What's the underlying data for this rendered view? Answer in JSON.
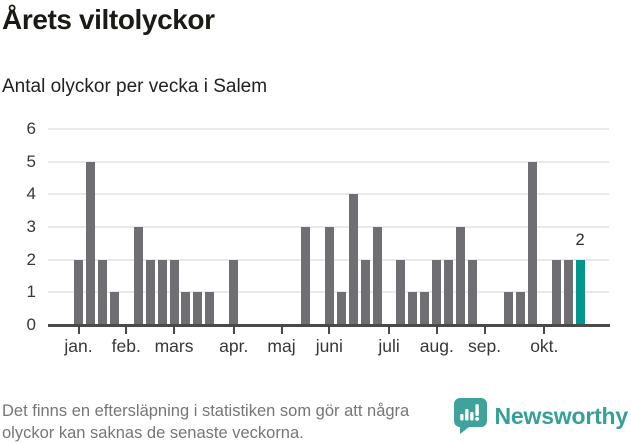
{
  "header": {
    "title": "Årets viltolyckor",
    "subtitle": "Antal olyckor per vecka i Salem"
  },
  "chart_data": {
    "type": "bar",
    "title": "Årets viltolyckor",
    "subtitle": "Antal olyckor per vecka i Salem",
    "ylabel": "",
    "xlabel": "",
    "ylim": [
      0,
      6
    ],
    "y_ticks": [
      0,
      1,
      2,
      3,
      4,
      5,
      6
    ],
    "grid": "horizontal",
    "values": [
      2,
      5,
      2,
      1,
      0,
      3,
      2,
      2,
      2,
      1,
      1,
      1,
      0,
      2,
      0,
      0,
      0,
      0,
      0,
      3,
      0,
      3,
      1,
      4,
      2,
      3,
      0,
      2,
      1,
      1,
      2,
      2,
      3,
      2,
      0,
      0,
      1,
      1,
      5,
      0,
      2,
      2,
      2
    ],
    "month_ticks": [
      {
        "index": 0,
        "label": "jan."
      },
      {
        "index": 4,
        "label": "feb."
      },
      {
        "index": 8,
        "label": "mars"
      },
      {
        "index": 13,
        "label": "apr."
      },
      {
        "index": 17,
        "label": "maj"
      },
      {
        "index": 21,
        "label": "juni"
      },
      {
        "index": 26,
        "label": "juli"
      },
      {
        "index": 30,
        "label": "aug."
      },
      {
        "index": 34,
        "label": "sep."
      },
      {
        "index": 39,
        "label": "okt."
      }
    ],
    "highlight": {
      "index": 42,
      "label": "2"
    },
    "colors": {
      "bar": "#6f6e73",
      "highlight_bar": "#00958f",
      "gridline": "#e9e9e9",
      "axis": "#4a4a48"
    }
  },
  "footer": {
    "note": "Det finns en eftersläpning i statistiken som gör att några olyckor kan saknas de senaste veckorna.",
    "brand": "Newsworthy",
    "brand_color": "#35a099"
  }
}
